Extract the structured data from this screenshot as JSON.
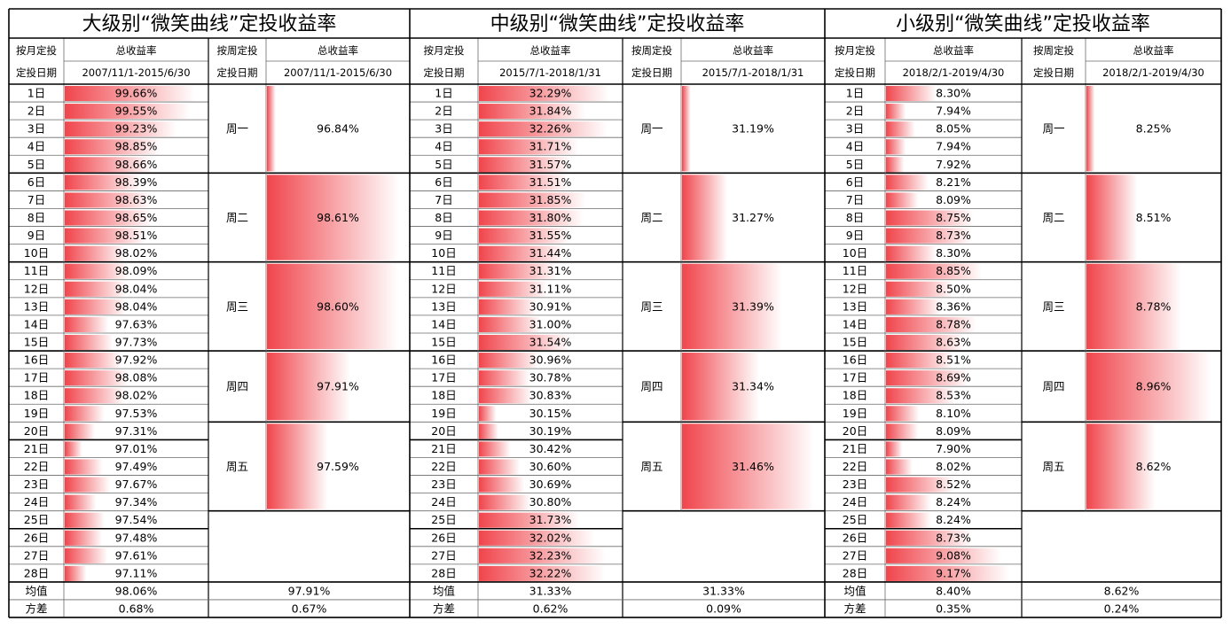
{
  "chart_data": [
    {
      "type": "table",
      "title": "大级别“微笑曲线”定投收益率",
      "monthly": {
        "header_col1": [
          "按月定投",
          "定投日期"
        ],
        "header_metric": "总收益率",
        "period": "2007/11/1-2015/6/30",
        "days": [
          "1日",
          "2日",
          "3日",
          "4日",
          "5日",
          "6日",
          "7日",
          "8日",
          "9日",
          "10日",
          "11日",
          "12日",
          "13日",
          "14日",
          "15日",
          "16日",
          "17日",
          "18日",
          "19日",
          "20日",
          "21日",
          "22日",
          "23日",
          "24日",
          "25日",
          "26日",
          "27日",
          "28日"
        ],
        "labels": [
          "99.66%",
          "99.55%",
          "99.23%",
          "98.85%",
          "98.66%",
          "98.39%",
          "98.63%",
          "98.65%",
          "98.51%",
          "98.02%",
          "98.09%",
          "98.04%",
          "98.04%",
          "97.63%",
          "97.73%",
          "97.92%",
          "98.08%",
          "98.02%",
          "97.53%",
          "97.31%",
          "97.01%",
          "97.49%",
          "97.67%",
          "97.34%",
          "97.54%",
          "97.48%",
          "97.61%",
          "97.11%"
        ],
        "values": [
          99.66,
          99.55,
          99.23,
          98.85,
          98.66,
          98.39,
          98.63,
          98.65,
          98.51,
          98.02,
          98.09,
          98.04,
          98.04,
          97.63,
          97.73,
          97.92,
          98.08,
          98.02,
          97.53,
          97.31,
          97.01,
          97.49,
          97.67,
          97.34,
          97.54,
          97.48,
          97.61,
          97.11
        ],
        "mean_label": "均值",
        "mean": "98.06%",
        "var_label": "方差",
        "variance": "0.68%"
      },
      "weekly": {
        "header_col1": [
          "按周定投",
          "定投日期"
        ],
        "header_metric": "总收益率",
        "period": "2007/11/1-2015/6/30",
        "days": [
          "周一",
          "周二",
          "周三",
          "周四",
          "周五"
        ],
        "labels": [
          "96.84%",
          "98.61%",
          "98.60%",
          "97.91%",
          "97.59%"
        ],
        "values": [
          96.84,
          98.61,
          98.6,
          97.91,
          97.59
        ],
        "mean": "97.91%",
        "variance": "0.67%"
      }
    },
    {
      "type": "table",
      "title": "中级别“微笑曲线”定投收益率",
      "monthly": {
        "header_col1": [
          "按月定投",
          "定投日期"
        ],
        "header_metric": "总收益率",
        "period": "2015/7/1-2018/1/31",
        "days": [
          "1日",
          "2日",
          "3日",
          "4日",
          "5日",
          "6日",
          "7日",
          "8日",
          "9日",
          "10日",
          "11日",
          "12日",
          "13日",
          "14日",
          "15日",
          "16日",
          "17日",
          "18日",
          "19日",
          "20日",
          "21日",
          "22日",
          "23日",
          "24日",
          "25日",
          "26日",
          "27日",
          "28日"
        ],
        "labels": [
          "32.29%",
          "31.84%",
          "32.26%",
          "31.71%",
          "31.57%",
          "31.51%",
          "31.85%",
          "31.80%",
          "31.55%",
          "31.44%",
          "31.31%",
          "31.11%",
          "30.91%",
          "31.00%",
          "31.54%",
          "30.96%",
          "30.78%",
          "30.83%",
          "30.15%",
          "30.19%",
          "30.42%",
          "30.60%",
          "30.69%",
          "30.80%",
          "31.73%",
          "32.02%",
          "32.23%",
          "32.22%"
        ],
        "values": [
          32.29,
          31.84,
          32.26,
          31.71,
          31.57,
          31.51,
          31.85,
          31.8,
          31.55,
          31.44,
          31.31,
          31.11,
          30.91,
          31.0,
          31.54,
          30.96,
          30.78,
          30.83,
          30.15,
          30.19,
          30.42,
          30.6,
          30.69,
          30.8,
          31.73,
          32.02,
          32.23,
          32.22
        ],
        "mean_label": "均值",
        "mean": "31.33%",
        "var_label": "方差",
        "variance": "0.62%"
      },
      "weekly": {
        "header_col1": [
          "按周定投",
          "定投日期"
        ],
        "header_metric": "总收益率",
        "period": "2015/7/1-2018/1/31",
        "days": [
          "周一",
          "周二",
          "周三",
          "周四",
          "周五"
        ],
        "labels": [
          "31.19%",
          "31.27%",
          "31.39%",
          "31.34%",
          "31.46%"
        ],
        "values": [
          31.19,
          31.27,
          31.39,
          31.34,
          31.46
        ],
        "mean": "31.33%",
        "variance": "0.09%"
      }
    },
    {
      "type": "table",
      "title": "小级别“微笑曲线”定投收益率",
      "monthly": {
        "header_col1": [
          "按月定投",
          "定投日期"
        ],
        "header_metric": "总收益率",
        "period": "2018/2/1-2019/4/30",
        "days": [
          "1日",
          "2日",
          "3日",
          "4日",
          "5日",
          "6日",
          "7日",
          "8日",
          "9日",
          "10日",
          "11日",
          "12日",
          "13日",
          "14日",
          "15日",
          "16日",
          "17日",
          "18日",
          "19日",
          "20日",
          "21日",
          "22日",
          "23日",
          "24日",
          "25日",
          "26日",
          "27日",
          "28日"
        ],
        "labels": [
          "8.30%",
          "7.94%",
          "8.05%",
          "7.94%",
          "7.92%",
          "8.21%",
          "8.09%",
          "8.75%",
          "8.73%",
          "8.30%",
          "8.85%",
          "8.50%",
          "8.36%",
          "8.78%",
          "8.63%",
          "8.51%",
          "8.69%",
          "8.53%",
          "8.10%",
          "8.09%",
          "7.90%",
          "8.02%",
          "8.52%",
          "8.24%",
          "8.24%",
          "8.73%",
          "9.08%",
          "9.17%"
        ],
        "values": [
          8.3,
          7.94,
          8.05,
          7.94,
          7.92,
          8.21,
          8.09,
          8.75,
          8.73,
          8.3,
          8.85,
          8.5,
          8.36,
          8.78,
          8.63,
          8.51,
          8.69,
          8.53,
          8.1,
          8.09,
          7.9,
          8.02,
          8.52,
          8.24,
          8.24,
          8.73,
          9.08,
          9.17
        ],
        "mean_label": "均值",
        "mean": "8.40%",
        "var_label": "方差",
        "variance": "0.35%"
      },
      "weekly": {
        "header_col1": [
          "按周定投",
          "定投日期"
        ],
        "header_metric": "总收益率",
        "period": "2018/2/1-2019/4/30",
        "days": [
          "周一",
          "周二",
          "周三",
          "周四",
          "周五"
        ],
        "labels": [
          "8.25%",
          "8.51%",
          "8.78%",
          "8.96%",
          "8.62%"
        ],
        "values": [
          8.25,
          8.51,
          8.78,
          8.96,
          8.62
        ],
        "mean": "8.62%",
        "variance": "0.24%"
      }
    }
  ],
  "colors": {
    "bar": "#f0454c",
    "bar_fade": "#ffffff",
    "border": "#000000",
    "grid": "#9a9a9a",
    "text": "#000000"
  }
}
